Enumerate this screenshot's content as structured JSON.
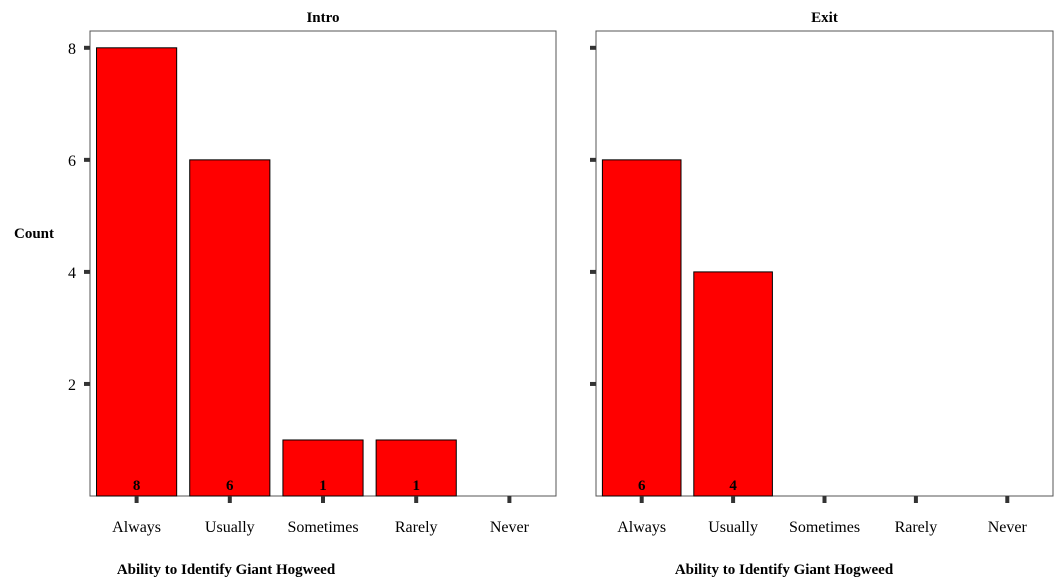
{
  "chart_data": {
    "type": "bar",
    "ylabel": "Count",
    "ylim": [
      0,
      8.3
    ],
    "yticks": [
      2,
      4,
      6,
      8
    ],
    "bar_color": "#ff0000",
    "categories": [
      "Always",
      "Usually",
      "Sometimes",
      "Rarely",
      "Never"
    ],
    "panels": [
      {
        "title": "Intro",
        "xlabel": "Ability to Identify Giant Hogweed",
        "values": [
          8,
          6,
          1,
          1,
          0
        ],
        "labels": [
          "8",
          "6",
          "1",
          "1",
          ""
        ]
      },
      {
        "title": "Exit",
        "xlabel": "Ability to Identify Giant Hogweed",
        "values": [
          6,
          4,
          0,
          0,
          0
        ],
        "labels": [
          "6",
          "4",
          "",
          "",
          ""
        ]
      }
    ]
  }
}
